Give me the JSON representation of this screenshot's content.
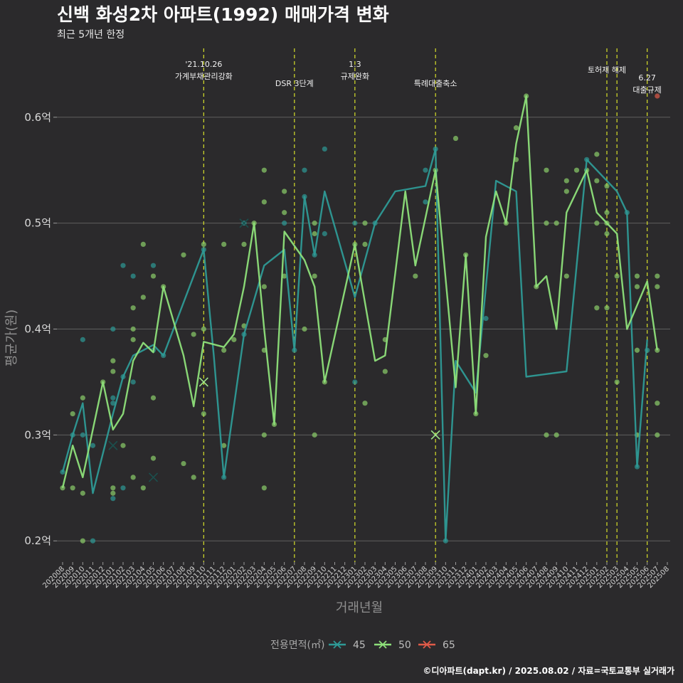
{
  "chart_data": {
    "type": "line",
    "title": "신백 화성2차 아파트(1992) 매매가격 변화",
    "subtitle": "최근 5개년 한정",
    "xlabel": "거래년월",
    "ylabel": "평균가(원)",
    "caption": "©디아파트(dapt.kr) / 2025.08.02 / 자료=국토교통부 실거래가",
    "ylim": [
      0.18,
      0.665
    ],
    "yticks": [
      {
        "value": 0.2,
        "label": "0.2억"
      },
      {
        "value": 0.3,
        "label": "0.3억"
      },
      {
        "value": 0.4,
        "label": "0.4억"
      },
      {
        "value": 0.5,
        "label": "0.5억"
      },
      {
        "value": 0.6,
        "label": "0.6억"
      }
    ],
    "grid": true,
    "legend": {
      "title": "전용면적(㎡)",
      "position": "bottom"
    },
    "x_months": [
      "202008",
      "202009",
      "202010",
      "202011",
      "202012",
      "202101",
      "202102",
      "202103",
      "202104",
      "202105",
      "202106",
      "202107",
      "202108",
      "202109",
      "202110",
      "202111",
      "202112",
      "202201",
      "202202",
      "202203",
      "202204",
      "202205",
      "202206",
      "202207",
      "202208",
      "202209",
      "202210",
      "202211",
      "202212",
      "202301",
      "202302",
      "202303",
      "202304",
      "202305",
      "202306",
      "202307",
      "202308",
      "202309",
      "202310",
      "202311",
      "202312",
      "202401",
      "202402",
      "202403",
      "202404",
      "202405",
      "202406",
      "202407",
      "202408",
      "202409",
      "202410",
      "202411",
      "202412",
      "202501",
      "202502",
      "202503",
      "202504",
      "202505",
      "202506",
      "202507",
      "202508"
    ],
    "annotations": [
      {
        "x": 14.0,
        "text": [
          "'21.10.26",
          "가계부채관리강화"
        ]
      },
      {
        "x": 23.0,
        "text": [
          "DSR 3단계"
        ]
      },
      {
        "x": 29.0,
        "text": [
          "1.3",
          "규제완화"
        ]
      },
      {
        "x": 37.0,
        "text": [
          "특례대출축소"
        ]
      },
      {
        "x": 54.0,
        "text": [
          "토허제 해제"
        ]
      },
      {
        "x": 55.0,
        "text": []
      },
      {
        "x": 58.0,
        "text": [
          "6.27",
          "대출규제"
        ]
      }
    ],
    "series": [
      {
        "name": "45",
        "color": "#2e9a96",
        "points_color": "#2e9a96",
        "line": [
          [
            0,
            0.265
          ],
          [
            1,
            0.3
          ],
          [
            2,
            0.33
          ],
          [
            3,
            0.245
          ],
          [
            5,
            0.32
          ],
          [
            6,
            0.355
          ],
          [
            7,
            0.375
          ],
          [
            8,
            0.38
          ],
          [
            9,
            0.385
          ],
          [
            10,
            0.375
          ],
          [
            14,
            0.475
          ],
          [
            15,
            0.375
          ],
          [
            16,
            0.26
          ],
          [
            18,
            0.395
          ],
          [
            20,
            0.46
          ],
          [
            22,
            0.475
          ],
          [
            23,
            0.38
          ],
          [
            24,
            0.525
          ],
          [
            25,
            0.47
          ],
          [
            26,
            0.53
          ],
          [
            29,
            0.43
          ],
          [
            31,
            0.5
          ],
          [
            33,
            0.53
          ],
          [
            36,
            0.535
          ],
          [
            37,
            0.57
          ],
          [
            38,
            0.2
          ],
          [
            39,
            0.37
          ],
          [
            41,
            0.34
          ],
          [
            43,
            0.54
          ],
          [
            45,
            0.53
          ],
          [
            46,
            0.355
          ],
          [
            50,
            0.36
          ],
          [
            52,
            0.56
          ],
          [
            55,
            0.53
          ],
          [
            56,
            0.51
          ],
          [
            57,
            0.27
          ],
          [
            58,
            0.39
          ]
        ],
        "scatter": [
          [
            0,
            0.265
          ],
          [
            1,
            0.3
          ],
          [
            2,
            0.39
          ],
          [
            2,
            0.3
          ],
          [
            3,
            0.2
          ],
          [
            3,
            0.29
          ],
          [
            5,
            0.4
          ],
          [
            5,
            0.335
          ],
          [
            5,
            0.33
          ],
          [
            5,
            0.24
          ],
          [
            6,
            0.46
          ],
          [
            6,
            0.25
          ],
          [
            6,
            0.355
          ],
          [
            7,
            0.35
          ],
          [
            7,
            0.45
          ],
          [
            9,
            0.46
          ],
          [
            9,
            0.38
          ],
          [
            10,
            0.375
          ],
          [
            14,
            0.475
          ],
          [
            16,
            0.26
          ],
          [
            18,
            0.395
          ],
          [
            18,
            0.5
          ],
          [
            22,
            0.5
          ],
          [
            23,
            0.38
          ],
          [
            24,
            0.55
          ],
          [
            24,
            0.525
          ],
          [
            25,
            0.47
          ],
          [
            26,
            0.57
          ],
          [
            26,
            0.49
          ],
          [
            29,
            0.5
          ],
          [
            29,
            0.35
          ],
          [
            31,
            0.5
          ],
          [
            36,
            0.52
          ],
          [
            36,
            0.55
          ],
          [
            37,
            0.57
          ],
          [
            38,
            0.2
          ],
          [
            42,
            0.41
          ],
          [
            52,
            0.56
          ],
          [
            56,
            0.51
          ],
          [
            57,
            0.27
          ],
          [
            58,
            0.38
          ]
        ],
        "cross": [
          [
            5,
            0.29
          ],
          [
            9,
            0.26
          ],
          [
            18,
            0.5
          ]
        ]
      },
      {
        "name": "50",
        "color": "#8ee07a",
        "points_color": "#8ccf6a",
        "line": [
          [
            0,
            0.25
          ],
          [
            1,
            0.29
          ],
          [
            2,
            0.26
          ],
          [
            4,
            0.35
          ],
          [
            5,
            0.305
          ],
          [
            6,
            0.32
          ],
          [
            7,
            0.37
          ],
          [
            8,
            0.387
          ],
          [
            9,
            0.378
          ],
          [
            10,
            0.44
          ],
          [
            12,
            0.375
          ],
          [
            13,
            0.327
          ],
          [
            14,
            0.388
          ],
          [
            16,
            0.383
          ],
          [
            17,
            0.395
          ],
          [
            18,
            0.44
          ],
          [
            19,
            0.5
          ],
          [
            20,
            0.4
          ],
          [
            21,
            0.31
          ],
          [
            22,
            0.492
          ],
          [
            24,
            0.465
          ],
          [
            25,
            0.44
          ],
          [
            26,
            0.35
          ],
          [
            29,
            0.48
          ],
          [
            31,
            0.37
          ],
          [
            32,
            0.375
          ],
          [
            34,
            0.53
          ],
          [
            35,
            0.46
          ],
          [
            37,
            0.55
          ],
          [
            39,
            0.345
          ],
          [
            40,
            0.47
          ],
          [
            41,
            0.32
          ],
          [
            42,
            0.487
          ],
          [
            43,
            0.53
          ],
          [
            44,
            0.5
          ],
          [
            45,
            0.575
          ],
          [
            46,
            0.62
          ],
          [
            47,
            0.44
          ],
          [
            48,
            0.45
          ],
          [
            49,
            0.4
          ],
          [
            50,
            0.51
          ],
          [
            52,
            0.55
          ],
          [
            53,
            0.51
          ],
          [
            55,
            0.49
          ],
          [
            56,
            0.4
          ],
          [
            58,
            0.445
          ],
          [
            59,
            0.38
          ]
        ],
        "scatter": [
          [
            0,
            0.25
          ],
          [
            1,
            0.32
          ],
          [
            1,
            0.25
          ],
          [
            2,
            0.335
          ],
          [
            2,
            0.245
          ],
          [
            2,
            0.2
          ],
          [
            4,
            0.35
          ],
          [
            5,
            0.37
          ],
          [
            5,
            0.36
          ],
          [
            5,
            0.25
          ],
          [
            5,
            0.245
          ],
          [
            6,
            0.29
          ],
          [
            7,
            0.42
          ],
          [
            7,
            0.4
          ],
          [
            7,
            0.39
          ],
          [
            7,
            0.26
          ],
          [
            8,
            0.48
          ],
          [
            8,
            0.43
          ],
          [
            8,
            0.25
          ],
          [
            9,
            0.45
          ],
          [
            9,
            0.335
          ],
          [
            9,
            0.278
          ],
          [
            10,
            0.44
          ],
          [
            12,
            0.47
          ],
          [
            12,
            0.273
          ],
          [
            13,
            0.395
          ],
          [
            13,
            0.26
          ],
          [
            14,
            0.48
          ],
          [
            14,
            0.4
          ],
          [
            14,
            0.32
          ],
          [
            16,
            0.48
          ],
          [
            16,
            0.38
          ],
          [
            16,
            0.29
          ],
          [
            17,
            0.39
          ],
          [
            18,
            0.48
          ],
          [
            18,
            0.403
          ],
          [
            19,
            0.5
          ],
          [
            20,
            0.55
          ],
          [
            20,
            0.52
          ],
          [
            20,
            0.44
          ],
          [
            20,
            0.38
          ],
          [
            20,
            0.3
          ],
          [
            20,
            0.25
          ],
          [
            21,
            0.31
          ],
          [
            22,
            0.53
          ],
          [
            22,
            0.51
          ],
          [
            22,
            0.45
          ],
          [
            24,
            0.4
          ],
          [
            25,
            0.5
          ],
          [
            25,
            0.49
          ],
          [
            25,
            0.45
          ],
          [
            25,
            0.3
          ],
          [
            26,
            0.35
          ],
          [
            29,
            0.48
          ],
          [
            30,
            0.5
          ],
          [
            30,
            0.48
          ],
          [
            30,
            0.33
          ],
          [
            32,
            0.39
          ],
          [
            32,
            0.36
          ],
          [
            35,
            0.45
          ],
          [
            37,
            0.55
          ],
          [
            40,
            0.47
          ],
          [
            41,
            0.32
          ],
          [
            42,
            0.375
          ],
          [
            44,
            0.5
          ],
          [
            45,
            0.59
          ],
          [
            45,
            0.56
          ],
          [
            46,
            0.62
          ],
          [
            47,
            0.44
          ],
          [
            48,
            0.55
          ],
          [
            48,
            0.5
          ],
          [
            48,
            0.3
          ],
          [
            49,
            0.5
          ],
          [
            49,
            0.3
          ],
          [
            50,
            0.54
          ],
          [
            50,
            0.53
          ],
          [
            50,
            0.45
          ],
          [
            51,
            0.55
          ],
          [
            52,
            0.55
          ],
          [
            53,
            0.565
          ],
          [
            53,
            0.54
          ],
          [
            53,
            0.5
          ],
          [
            53,
            0.42
          ],
          [
            54,
            0.535
          ],
          [
            54,
            0.51
          ],
          [
            54,
            0.5
          ],
          [
            54,
            0.49
          ],
          [
            54,
            0.42
          ],
          [
            55,
            0.45
          ],
          [
            55,
            0.35
          ],
          [
            57,
            0.45
          ],
          [
            57,
            0.44
          ],
          [
            57,
            0.38
          ],
          [
            57,
            0.3
          ],
          [
            59,
            0.45
          ],
          [
            59,
            0.44
          ],
          [
            59,
            0.38
          ],
          [
            59,
            0.33
          ],
          [
            59,
            0.3
          ],
          [
            39,
            0.58
          ]
        ],
        "cross": [
          [
            14,
            0.35
          ],
          [
            37,
            0.3
          ]
        ]
      },
      {
        "name": "65",
        "color": "#e05a48",
        "points_color": "#e05a48",
        "line": [],
        "scatter": [
          [
            59,
            0.62
          ]
        ],
        "cross": []
      }
    ]
  }
}
